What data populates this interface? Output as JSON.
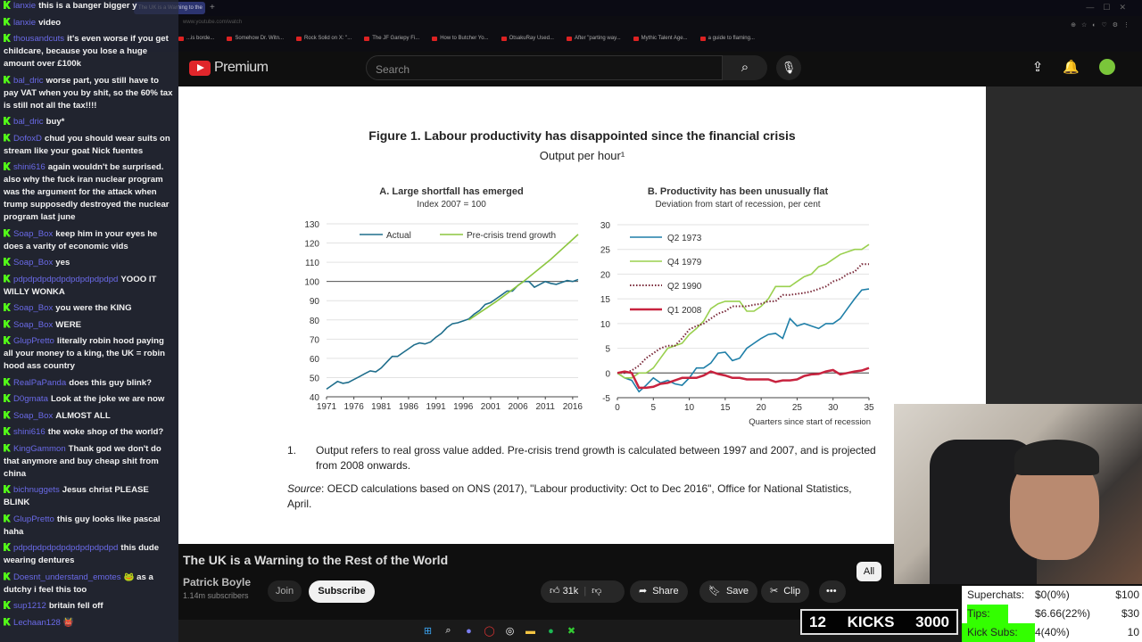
{
  "browser": {
    "active_tab": "The UK is a Warning to the",
    "url": "www.youtube.com/watch",
    "bookmarks": [
      "...is borde...",
      "Somehow Dr. Witn...",
      "Rock Solid on X: \"...",
      "The JF Gariepy Fi...",
      "How to Butcher Yo...",
      "OtsakuRay Used...",
      "After \"parting way...",
      "Mythic Talent Age...",
      "a guide to flaming..."
    ]
  },
  "youtube": {
    "search_placeholder": "Search",
    "premium_label": "Premium",
    "video_title": "The UK is a Warning to the Rest of the World",
    "channel": "Patrick Boyle",
    "subscribers": "1.14m subscribers",
    "join": "Join",
    "subscribe": "Subscribe",
    "likes": "31k",
    "share": "Share",
    "save": "Save",
    "clip": "Clip",
    "chip_all": "All"
  },
  "document": {
    "figure_title": "Figure 1. Labour productivity has disappointed since the financial crisis",
    "figure_subtitle": "Output per hour¹",
    "note_number": "1.",
    "note_text": "Output refers to real gross value added. Pre-crisis trend growth is calculated between 1997 and 2007, and is projected from 2008 onwards.",
    "source_label": "Source",
    "source_text": ": OECD calculations based on ONS (2017), \"Labour productivity: Oct to Dec 2016\", Office for National Statistics, April."
  },
  "chart_data": [
    {
      "type": "line",
      "title": "A. Large shortfall has emerged",
      "subtitle": "Index 2007 = 100",
      "xlabel": "",
      "ylabel": "",
      "ylim": [
        40,
        130
      ],
      "xlim": [
        1971,
        2017
      ],
      "yticks": [
        40,
        50,
        60,
        70,
        80,
        90,
        100,
        110,
        120,
        130
      ],
      "xticks": [
        "1971",
        "1976",
        "1981",
        "1986",
        "1991",
        "1996",
        "2001",
        "2006",
        "2011",
        "2016"
      ],
      "reference_line": 100,
      "legend": "top",
      "series": [
        {
          "name": "Actual",
          "color": "#1f6e8c",
          "x": [
            1971,
            1972,
            1973,
            1974,
            1975,
            1976,
            1977,
            1978,
            1979,
            1980,
            1981,
            1982,
            1983,
            1984,
            1985,
            1986,
            1987,
            1988,
            1989,
            1990,
            1991,
            1992,
            1993,
            1994,
            1995,
            1996,
            1997,
            1998,
            1999,
            2000,
            2001,
            2002,
            2003,
            2004,
            2005,
            2006,
            2007,
            2008,
            2009,
            2010,
            2011,
            2012,
            2013,
            2014,
            2015,
            2016,
            2017
          ],
          "values": [
            44,
            46,
            48,
            47,
            47.5,
            49,
            50.5,
            52,
            53.5,
            53,
            55,
            58,
            61,
            61,
            63,
            65,
            67,
            68,
            67.5,
            68.5,
            71,
            73,
            76,
            78,
            78.5,
            79.5,
            80.5,
            83,
            85,
            88,
            89,
            91,
            93,
            95,
            95,
            98,
            100,
            100,
            97,
            98.5,
            100,
            99,
            98.5,
            99.5,
            100.5,
            100,
            101
          ]
        },
        {
          "name": "Pre-crisis trend growth",
          "color": "#8cc63f",
          "x": [
            1997,
            2002,
            2007,
            2012,
            2017
          ],
          "values": [
            80,
            89.5,
            100,
            111.5,
            124.5
          ]
        }
      ]
    },
    {
      "type": "line",
      "title": "B. Productivity has been unusually flat",
      "subtitle": "Deviation from start of recession, per cent",
      "xlabel": "Quarters since start of recession",
      "ylabel": "",
      "ylim": [
        -5,
        30
      ],
      "xlim": [
        0,
        35
      ],
      "yticks": [
        -5,
        0,
        5,
        10,
        15,
        20,
        25,
        30
      ],
      "xticks": [
        "0",
        "5",
        "10",
        "15",
        "20",
        "25",
        "30",
        "35"
      ],
      "legend": "top-left",
      "series": [
        {
          "name": "Q2 1973",
          "color": "#1f7fa8",
          "dash": false,
          "values": [
            0,
            -1,
            -1.5,
            -3.8,
            -2.5,
            -1,
            -2,
            -1.5,
            -2.2,
            -2.5,
            -1,
            1,
            1,
            2,
            4,
            4.2,
            2.5,
            3,
            5,
            6,
            7,
            7.8,
            8,
            7,
            11,
            9.5,
            10,
            9.5,
            9,
            10,
            10,
            11,
            13,
            15,
            16.8,
            17
          ]
        },
        {
          "name": "Q4 1979",
          "color": "#9ad04f",
          "dash": false,
          "values": [
            0,
            -1,
            -1,
            0,
            0,
            1,
            3,
            5,
            5.5,
            6,
            7.8,
            9,
            10.5,
            13,
            14,
            14.5,
            14.5,
            14.5,
            12.5,
            12.5,
            13.5,
            15,
            17.5,
            17.5,
            17.5,
            18.5,
            19.5,
            20,
            21.5,
            22,
            23,
            24,
            24.5,
            25,
            25,
            26
          ]
        },
        {
          "name": "Q2 1990",
          "color": "#7a2a3a",
          "dash": true,
          "values": [
            0,
            0,
            0.5,
            1.5,
            3,
            4,
            5,
            5.5,
            5.5,
            7,
            8.8,
            9.5,
            10,
            11,
            12,
            12.5,
            13.5,
            13.5,
            13.5,
            13.8,
            14,
            14.5,
            14.5,
            15.8,
            15.8,
            16,
            16.2,
            16.5,
            17,
            17.5,
            18.5,
            19,
            20,
            20.5,
            22,
            22
          ]
        },
        {
          "name": "Q1 2008",
          "color": "#c8233f",
          "dash": false,
          "values": [
            0,
            0.3,
            0,
            -3,
            -3,
            -2.8,
            -2.2,
            -2,
            -1.5,
            -1,
            -1,
            -1,
            -0.5,
            0.3,
            -0.2,
            -0.5,
            -1,
            -1,
            -1.3,
            -1.3,
            -1.3,
            -1.3,
            -1.8,
            -1.5,
            -1.5,
            -1.3,
            -0.6,
            -0.3,
            -0.2,
            0.3,
            0.6,
            -0.3,
            0,
            0.3,
            0.5,
            1
          ]
        }
      ]
    }
  ],
  "chat": [
    {
      "user": "lanxie",
      "text": "this is a banger bigger y"
    },
    {
      "user": "lanxie",
      "text": "video"
    },
    {
      "user": "thousandcuts",
      "text": "it's even worse if you get childcare, because you lose a huge amount over £100k"
    },
    {
      "user": "bal_dric",
      "text": "worse part, you still have to pay VAT when you by shit, so the 60% tax is still not all the tax!!!!"
    },
    {
      "user": "bal_dric",
      "text": "buy*"
    },
    {
      "user": "DofoxD",
      "text": "chud you should wear suits on stream like your goat Nick fuentes"
    },
    {
      "user": "shini616",
      "text": "again wouldn't be surprised. also why the fuck iran nuclear program was the argument for the attack when trump supposedly destroyed the nuclear program last june"
    },
    {
      "user": "Soap_Box",
      "text": "keep him in your eyes he does a varity of economic vids"
    },
    {
      "user": "Soap_Box",
      "text": "yes"
    },
    {
      "user": "pdpdpdpdpdpdpdpdpdpdpd",
      "text": "YOOO IT WILLY WONKA"
    },
    {
      "user": "Soap_Box",
      "text": "you were the KING"
    },
    {
      "user": "Soap_Box",
      "text": "WERE"
    },
    {
      "user": "GlupPretto",
      "text": "literally robin hood paying all your money to a king, the UK = robin hood ass country"
    },
    {
      "user": "RealPaPanda",
      "text": "does this guy blink?"
    },
    {
      "user": "D0gmata",
      "text": "Look at the joke we are now"
    },
    {
      "user": "Soap_Box",
      "text": "ALMOST ALL"
    },
    {
      "user": "shini616",
      "text": "the woke shop of the world?"
    },
    {
      "user": "KingGammon",
      "text": "Thank god we don't do that anymore and buy cheap shit from china"
    },
    {
      "user": "bichnuggets",
      "text": "Jesus christ PLEASE BLINK"
    },
    {
      "user": "GlupPretto",
      "text": "this guy looks like pascal haha"
    },
    {
      "user": "pdpdpdpdpdpdpdpdpdpdpd",
      "text": "this dude wearing dentures"
    },
    {
      "user": "Doesnt_understand_emotes",
      "text": "🐸 as a dutchy i feel this too"
    },
    {
      "user": "sup1212",
      "text": "britain fell off"
    },
    {
      "user": "Lechaan128",
      "text": "👹"
    }
  ],
  "overlay": {
    "kicks_count": "12",
    "kicks_label": "KICKS",
    "kicks_goal": "3000",
    "stats": [
      {
        "label": "Superchats:",
        "value": "$0(0%)",
        "goal": "$100",
        "progress": 0
      },
      {
        "label": "Tips:",
        "value": "$6.66(22%)",
        "goal": "$30",
        "progress": 22
      },
      {
        "label": "Kick Subs:",
        "value": "4(40%)",
        "goal": "10",
        "progress": 40
      }
    ]
  },
  "colors": {
    "chart_a_actual": "#1f6e8c",
    "chart_a_trend": "#8cc63f",
    "kick_green": "#53fc18",
    "stats_fill": "#33ff00"
  }
}
